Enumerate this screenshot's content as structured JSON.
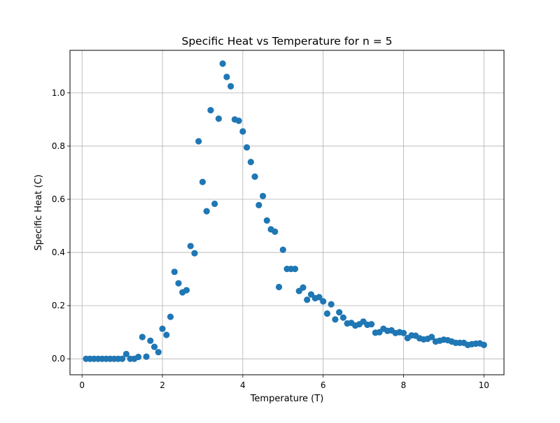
{
  "chart_data": {
    "type": "scatter",
    "title": "Specific Heat vs Temperature for n = 5",
    "xlabel": "Temperature (T)",
    "ylabel": "Specific Heat (C)",
    "xlim": [
      -0.3,
      10.5
    ],
    "ylim": [
      -0.06,
      1.16
    ],
    "x_ticks": [
      0,
      2,
      4,
      6,
      8,
      10
    ],
    "x_tick_labels": [
      "0",
      "2",
      "4",
      "6",
      "8",
      "10"
    ],
    "y_ticks": [
      0.0,
      0.2,
      0.4,
      0.6,
      0.8,
      1.0
    ],
    "y_tick_labels": [
      "0.0",
      "0.2",
      "0.4",
      "0.6",
      "0.8",
      "1.0"
    ],
    "grid": true,
    "marker_color": "#1f77b4",
    "series": [
      {
        "x": [
          0.1,
          0.2,
          0.3,
          0.4,
          0.5,
          0.6,
          0.7,
          0.8,
          0.9,
          1.0,
          1.1,
          1.2,
          1.3,
          1.4,
          1.5,
          1.6,
          1.7,
          1.8,
          1.9,
          2.0,
          2.1,
          2.2,
          2.3,
          2.4,
          2.5,
          2.6,
          2.7,
          2.8,
          2.9,
          3.0,
          3.1,
          3.2,
          3.3,
          3.4,
          3.5,
          3.6,
          3.7,
          3.8,
          3.9,
          4.0,
          4.1,
          4.2,
          4.3,
          4.4,
          4.5,
          4.6,
          4.7,
          4.8,
          4.9,
          5.0,
          5.1,
          5.2,
          5.3,
          5.4,
          5.5,
          5.6,
          5.7,
          5.8,
          5.9,
          6.0,
          6.1,
          6.2,
          6.3,
          6.4,
          6.5,
          6.6,
          6.7,
          6.8,
          6.9,
          7.0,
          7.1,
          7.2,
          7.3,
          7.4,
          7.5,
          7.6,
          7.7,
          7.8,
          7.9,
          8.0,
          8.1,
          8.2,
          8.3,
          8.4,
          8.5,
          8.6,
          8.7,
          8.8,
          8.9,
          9.0,
          9.1,
          9.2,
          9.3,
          9.4,
          9.5,
          9.6,
          9.7,
          9.8,
          9.9,
          10.0
        ],
        "values": [
          0.0,
          0.0,
          0.0,
          0.0,
          0.0,
          0.0,
          0.0,
          0.0,
          0.0,
          0.0,
          0.018,
          0.0,
          0.0,
          0.007,
          0.082,
          0.008,
          0.068,
          0.045,
          0.025,
          0.113,
          0.09,
          0.158,
          0.327,
          0.284,
          0.25,
          0.258,
          0.424,
          0.397,
          0.818,
          0.665,
          0.555,
          0.935,
          0.583,
          0.903,
          1.11,
          1.06,
          1.025,
          0.9,
          0.895,
          0.855,
          0.795,
          0.74,
          0.685,
          0.578,
          0.612,
          0.52,
          0.487,
          0.478,
          0.27,
          0.41,
          0.338,
          0.338,
          0.338,
          0.255,
          0.268,
          0.222,
          0.242,
          0.228,
          0.232,
          0.216,
          0.17,
          0.205,
          0.148,
          0.175,
          0.155,
          0.133,
          0.135,
          0.125,
          0.13,
          0.14,
          0.128,
          0.13,
          0.098,
          0.1,
          0.113,
          0.105,
          0.107,
          0.097,
          0.1,
          0.097,
          0.078,
          0.088,
          0.087,
          0.077,
          0.073,
          0.075,
          0.082,
          0.065,
          0.068,
          0.072,
          0.07,
          0.065,
          0.06,
          0.06,
          0.06,
          0.052,
          0.055,
          0.057,
          0.058,
          0.052
        ]
      }
    ]
  }
}
